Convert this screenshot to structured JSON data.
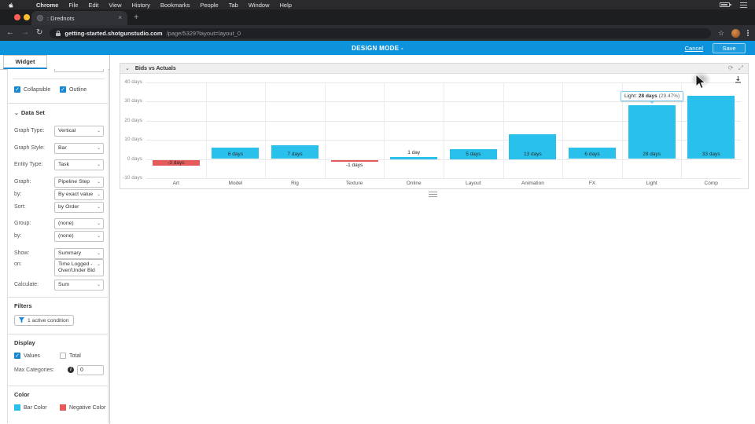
{
  "menubar": {
    "items": [
      "Chrome",
      "File",
      "Edit",
      "View",
      "History",
      "Bookmarks",
      "People",
      "Tab",
      "Window",
      "Help"
    ]
  },
  "browser": {
    "tab_title": ": Drednots",
    "tab_close": "×",
    "new_tab": "+",
    "url_domain": "getting-started.shotgunstudio.com",
    "url_path": "/page/5329?layout=layout_0"
  },
  "designbar": {
    "title": "DESIGN MODE -",
    "cancel_label": "Cancel",
    "save_label": "Save",
    "accent_color": "#0c93dc"
  },
  "sidebar": {
    "tab_label": "Widget",
    "collapsible_label": "Collapsible",
    "outline_label": "Outline",
    "dataset": {
      "title": "Data Set",
      "rows": [
        {
          "label": "Graph Type:",
          "value": "Vertical"
        },
        {
          "label": "Graph Style:",
          "value": "Bar"
        },
        {
          "label": "Entity Type:",
          "value": "Task"
        },
        {
          "label": "Graph:",
          "value": "Pipeline Step"
        },
        {
          "label": "by:",
          "value": "By exact value"
        },
        {
          "label": "Sort:",
          "value": "by Order"
        },
        {
          "label": "Group:",
          "value": "(none)"
        },
        {
          "label": "by:",
          "value": "(none)"
        },
        {
          "label": "Show:",
          "value": "Summary"
        },
        {
          "label": "on:",
          "value": "Time Logged - Over/Under Bid"
        },
        {
          "label": "Calculate:",
          "value": "Sum"
        }
      ]
    },
    "filters": {
      "title": "Filters",
      "button_label": "1 active condition"
    },
    "display": {
      "title": "Display",
      "values_label": "Values",
      "total_label": "Total",
      "max_categories_label": "Max Categories:",
      "max_categories_value": "0"
    },
    "color": {
      "title": "Color",
      "bar_color_label": "Bar Color",
      "negative_color_label": "Negative Color",
      "bar_color": "#29c1ec",
      "negative_color": "#e35b5b"
    }
  },
  "panel": {
    "title": "Bids vs Actuals"
  },
  "chart_data": {
    "type": "bar",
    "title": "Bids vs Actuals",
    "categories": [
      "Art",
      "Model",
      "Rig",
      "Texture",
      "Online",
      "Layout",
      "Animation",
      "FX",
      "Light",
      "Comp"
    ],
    "values": [
      -3,
      6,
      7,
      -1,
      1,
      5,
      13,
      6,
      28,
      33
    ],
    "value_labels": [
      "-3 days",
      "6 days",
      "7 days",
      "-1 days",
      "1 day",
      "5 days",
      "13 days",
      "6 days",
      "28 days",
      "33 days"
    ],
    "y_ticks": [
      {
        "label": "40 days",
        "value": 40
      },
      {
        "label": "30 days",
        "value": 30
      },
      {
        "label": "20 days",
        "value": 20
      },
      {
        "label": "10 days",
        "value": 10
      },
      {
        "label": "0 days",
        "value": 0
      },
      {
        "label": "-10 days",
        "value": -10
      }
    ],
    "ylim": [
      -10,
      40
    ],
    "grid": true,
    "legend": "none",
    "bar_color": "#29c1ec",
    "negative_color": "#e35b5b",
    "tooltip": {
      "index": 8,
      "prefix": "Light:",
      "value": "28 days",
      "suffix": "(29.47%)"
    }
  }
}
